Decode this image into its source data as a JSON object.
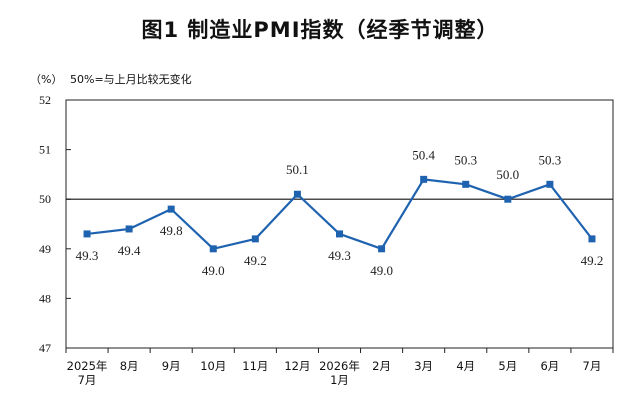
{
  "title": "图1  制造业PMI指数（经季节调整）",
  "chart_data": {
    "type": "line",
    "title": "图1  制造业PMI指数（经季节调整）",
    "unit_label": "（%）",
    "annotation": "50%=与上月比较无变化",
    "ylim": [
      47,
      52
    ],
    "yticks": [
      47,
      48,
      49,
      50,
      51,
      52
    ],
    "reference_line": 50,
    "categories": [
      [
        "2025年",
        "7月"
      ],
      [
        "8月"
      ],
      [
        "9月"
      ],
      [
        "10月"
      ],
      [
        "11月"
      ],
      [
        "12月"
      ],
      [
        "2026年",
        "1月"
      ],
      [
        "2月"
      ],
      [
        "3月"
      ],
      [
        "4月"
      ],
      [
        "5月"
      ],
      [
        "6月"
      ],
      [
        "7月"
      ]
    ],
    "values": [
      49.3,
      49.4,
      49.8,
      49.0,
      49.2,
      50.1,
      49.3,
      49.0,
      50.4,
      50.3,
      50.0,
      50.3,
      49.2
    ],
    "data_labels": [
      "49.3",
      "49.4",
      "49.8",
      "49.0",
      "49.2",
      "50.1",
      "49.3",
      "49.0",
      "50.4",
      "50.3",
      "50.0",
      "50.3",
      "49.2"
    ],
    "label_side": [
      "below",
      "below",
      "below",
      "below",
      "below",
      "above",
      "below",
      "below",
      "above",
      "above",
      "above",
      "above",
      "below"
    ],
    "line_color": "#1f63b0",
    "grid": false
  }
}
